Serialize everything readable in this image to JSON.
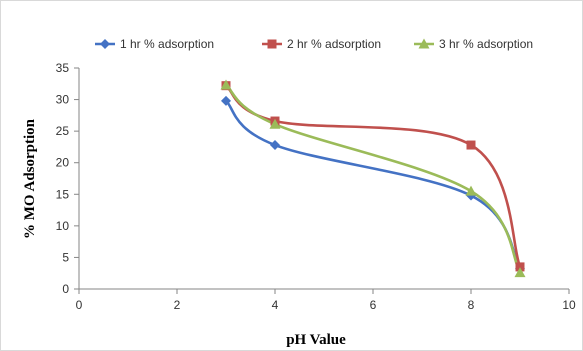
{
  "chart_data": {
    "type": "line",
    "xlabel": "pH Value",
    "ylabel": "% MO Adsorption",
    "xlim": [
      0,
      10
    ],
    "ylim": [
      0,
      35
    ],
    "xticks": [
      "0",
      "2",
      "4",
      "6",
      "8",
      "10"
    ],
    "yticks": [
      "0",
      "5",
      "10",
      "15",
      "20",
      "25",
      "30",
      "35"
    ],
    "legend_position": "top",
    "smooth": true,
    "grid": false,
    "series": [
      {
        "name": "1 hr % adsorption",
        "color": "#4472C4",
        "marker": "diamond",
        "points": [
          [
            3,
            29.8
          ],
          [
            4,
            22.8
          ],
          [
            8,
            14.8
          ],
          [
            9,
            3.2
          ]
        ]
      },
      {
        "name": "2 hr % adsorption",
        "color": "#C0504D",
        "marker": "square",
        "points": [
          [
            3,
            32.2
          ],
          [
            4,
            26.6
          ],
          [
            8,
            22.8
          ],
          [
            9,
            3.5
          ]
        ]
      },
      {
        "name": "3 hr % adsorption",
        "color": "#9BBB59",
        "marker": "triangle",
        "points": [
          [
            3,
            32.3
          ],
          [
            4,
            26.1
          ],
          [
            8,
            15.5
          ],
          [
            9,
            2.6
          ]
        ]
      }
    ]
  }
}
